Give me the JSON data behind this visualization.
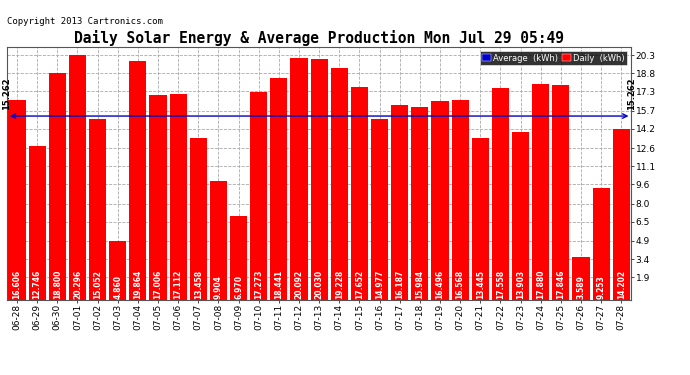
{
  "title": "Daily Solar Energy & Average Production Mon Jul 29 05:49",
  "copyright": "Copyright 2013 Cartronics.com",
  "categories": [
    "06-28",
    "06-29",
    "06-30",
    "07-01",
    "07-02",
    "07-03",
    "07-04",
    "07-05",
    "07-06",
    "07-07",
    "07-08",
    "07-09",
    "07-10",
    "07-11",
    "07-12",
    "07-13",
    "07-14",
    "07-15",
    "07-16",
    "07-17",
    "07-18",
    "07-19",
    "07-20",
    "07-21",
    "07-22",
    "07-23",
    "07-24",
    "07-25",
    "07-26",
    "07-27",
    "07-28"
  ],
  "values": [
    16.606,
    12.746,
    18.8,
    20.296,
    15.052,
    4.86,
    19.864,
    17.006,
    17.112,
    13.458,
    9.904,
    6.97,
    17.273,
    18.441,
    20.092,
    20.03,
    19.228,
    17.652,
    14.977,
    16.187,
    15.984,
    16.496,
    16.568,
    13.445,
    17.558,
    13.903,
    17.88,
    17.846,
    3.589,
    9.253,
    14.202
  ],
  "average": 15.262,
  "bar_color": "#ff0000",
  "average_line_color": "#0000cc",
  "background_color": "#ffffff",
  "plot_bg_color": "#ffffff",
  "grid_color": "#aaaaaa",
  "ylim_min": 0,
  "ylim_max": 21.0,
  "yticks": [
    1.9,
    3.4,
    4.9,
    6.5,
    8.0,
    9.6,
    11.1,
    12.6,
    14.2,
    15.7,
    17.3,
    18.8,
    20.3
  ],
  "legend_avg_color": "#0000cc",
  "legend_daily_color": "#ff0000",
  "title_fontsize": 10.5,
  "copyright_fontsize": 6.5,
  "bar_value_fontsize": 5.5,
  "tick_fontsize": 6.5,
  "ytick_fontsize": 6.5,
  "avg_label": "15.262"
}
